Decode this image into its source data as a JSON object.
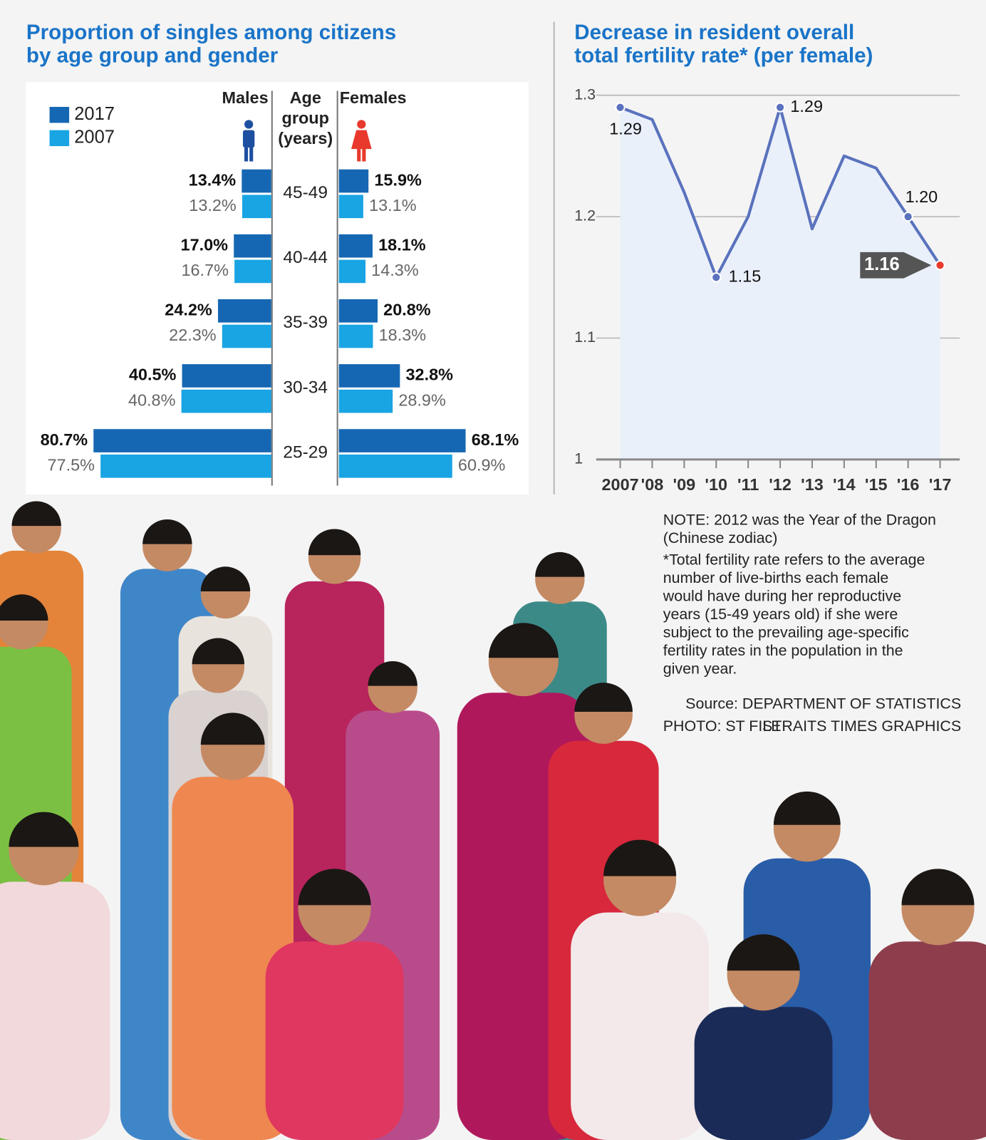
{
  "chart_data": [
    {
      "type": "butterfly-bar",
      "title": [
        "Proportion of singles among citizens",
        "by age group and gender"
      ],
      "legend": [
        {
          "name": "2017",
          "color": "#1667b3"
        },
        {
          "name": "2007",
          "color": "#19a4e3"
        }
      ],
      "center_label": [
        "Age",
        "group",
        "(years)"
      ],
      "categories": [
        "45-49",
        "40-44",
        "35-39",
        "30-34",
        "25-29"
      ],
      "panels": [
        {
          "name": "Males",
          "side": "left",
          "icon_color": "#1e4fa0",
          "series": [
            {
              "values": [
                13.4,
                17.0,
                24.2,
                40.5,
                80.7
              ],
              "value_labels": [
                "13.4%",
                "17.0%",
                "24.2%",
                "40.5%",
                "80.7%"
              ]
            },
            {
              "values": [
                13.2,
                16.7,
                22.3,
                40.8,
                77.5
              ],
              "value_labels": [
                "13.2%",
                "16.7%",
                "22.3%",
                "40.8%",
                "77.5%"
              ]
            }
          ]
        },
        {
          "name": "Females",
          "side": "right",
          "icon_color": "#e8392c",
          "series": [
            {
              "values": [
                15.9,
                18.1,
                20.8,
                32.8,
                68.1
              ],
              "value_labels": [
                "15.9%",
                "18.1%",
                "20.8%",
                "32.8%",
                "68.1%"
              ]
            },
            {
              "values": [
                13.1,
                14.3,
                18.3,
                28.9,
                60.9
              ],
              "value_labels": [
                "13.1%",
                "14.3%",
                "18.3%",
                "28.9%",
                "60.9%"
              ]
            }
          ]
        }
      ]
    },
    {
      "type": "line",
      "title": [
        "Decrease in resident overall",
        "total fertility rate* (per female)"
      ],
      "categories": [
        "2007",
        "'08",
        "'09",
        "'10",
        "'11",
        "'12",
        "'13",
        "'14",
        "'15",
        "'16",
        "'17"
      ],
      "values": [
        1.29,
        1.28,
        1.22,
        1.15,
        1.2,
        1.29,
        1.19,
        1.25,
        1.24,
        1.2,
        1.16
      ],
      "value_labels": [
        "1.29",
        null,
        null,
        "1.15",
        null,
        "1.29",
        null,
        null,
        null,
        "1.20",
        "1.16"
      ],
      "color": "#5a72bd",
      "area_color": "#eaf0fa",
      "marker_colors": [
        "#5a72bd",
        null,
        null,
        "#5a72bd",
        null,
        "#5a72bd",
        null,
        null,
        null,
        "#5a72bd",
        "#e8392c"
      ],
      "ylim": [
        1,
        1.3
      ],
      "yticks": [
        1,
        1.1,
        1.2,
        1.3
      ],
      "grid": true
    }
  ],
  "notes": {
    "note": [
      "NOTE: 2012 was the Year of the Dragon",
      "(Chinese zodiac)"
    ],
    "definition": [
      "*Total fertility rate refers to the average",
      "number of live-births each female",
      "would have during her reproductive",
      "years (15-49 years old) if she were",
      "subject to the prevailing age-specific",
      "fertility rates in the population in the",
      "given year."
    ],
    "source": "Source: DEPARTMENT OF STATISTICS",
    "photo": "PHOTO: ST FILE",
    "graphics": "STRAITS TIMES GRAPHICS"
  }
}
